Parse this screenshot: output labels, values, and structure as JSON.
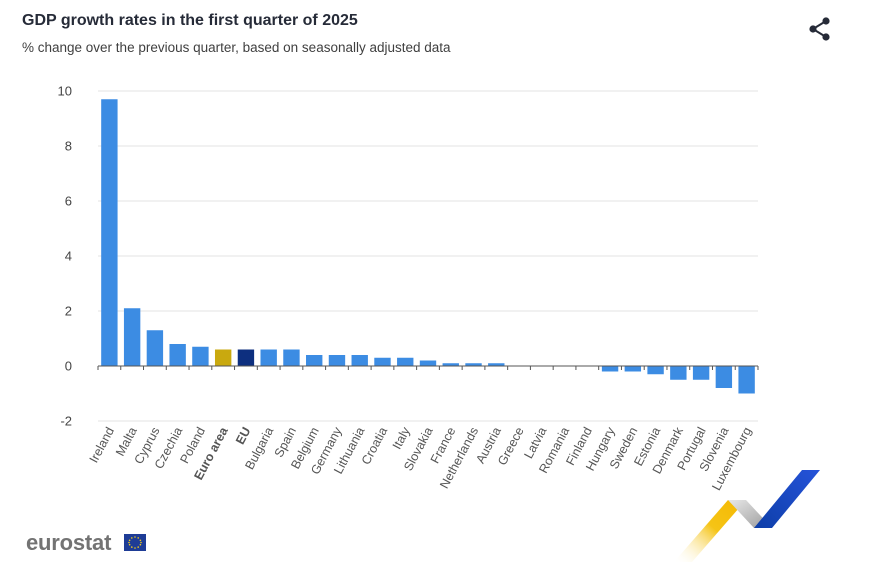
{
  "header": {
    "title": "GDP growth rates in the first quarter of 2025",
    "subtitle": "% change over the previous quarter, based on seasonally adjusted data"
  },
  "toolbar": {
    "share_icon": "share-icon"
  },
  "footer": {
    "brand": "eurostat",
    "flag_icon": "eu-flag-icon"
  },
  "colors": {
    "country": "#3c8ce3",
    "euro_area": "#c9a90f",
    "eu": "#0d2f7f",
    "grid": "#e3e3e3",
    "axis_text": "#555555"
  },
  "chart_data": {
    "type": "bar",
    "categories": [
      "Ireland",
      "Malta",
      "Cyprus",
      "Czechia",
      "Poland",
      "Euro area",
      "EU",
      "Bulgaria",
      "Spain",
      "Belgium",
      "Germany",
      "Lithuania",
      "Croatia",
      "Italy",
      "Slovakia",
      "France",
      "Netherlands",
      "Austria",
      "Greece",
      "Latvia",
      "Romania",
      "Finland",
      "Hungary",
      "Sweden",
      "Estonia",
      "Denmark",
      "Portugal",
      "Slovenia",
      "Luxembourg"
    ],
    "values": [
      9.7,
      2.1,
      1.3,
      0.8,
      0.7,
      0.6,
      0.6,
      0.6,
      0.6,
      0.4,
      0.4,
      0.4,
      0.3,
      0.3,
      0.2,
      0.1,
      0.1,
      0.1,
      0.0,
      0.0,
      0.0,
      0.0,
      -0.2,
      -0.2,
      -0.3,
      -0.5,
      -0.5,
      -0.8,
      -1.0
    ],
    "highlight": {
      "Euro area": "euro_area",
      "EU": "eu"
    },
    "bold_categories": [
      "Euro area",
      "EU"
    ],
    "yticks": [
      -2,
      0,
      2,
      4,
      6,
      8,
      10
    ],
    "ylim": [
      -2,
      10
    ],
    "grid": true,
    "legend": "none"
  }
}
